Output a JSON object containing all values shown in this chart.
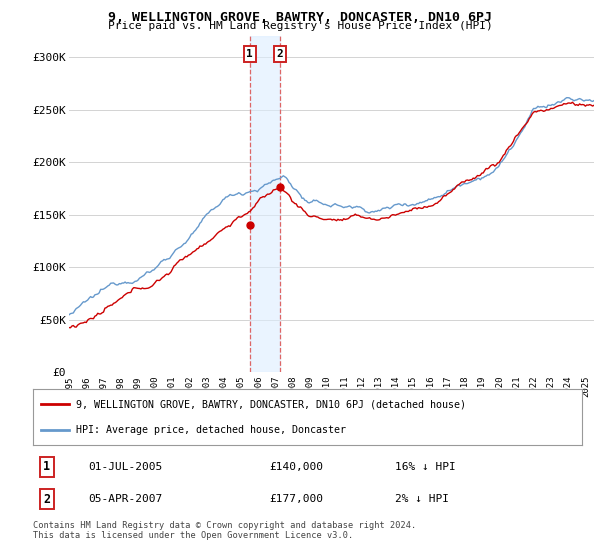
{
  "title": "9, WELLINGTON GROVE, BAWTRY, DONCASTER, DN10 6PJ",
  "subtitle": "Price paid vs. HM Land Registry's House Price Index (HPI)",
  "sale1_label": "1",
  "sale1_price": 140000,
  "sale2_label": "2",
  "sale2_price": 177000,
  "legend_red": "9, WELLINGTON GROVE, BAWTRY, DONCASTER, DN10 6PJ (detached house)",
  "legend_blue": "HPI: Average price, detached house, Doncaster",
  "footer": "Contains HM Land Registry data © Crown copyright and database right 2024.\nThis data is licensed under the Open Government Licence v3.0.",
  "xlim_start": 1995.0,
  "xlim_end": 2025.5,
  "ylim_bottom": 0,
  "ylim_top": 320000,
  "yticks": [
    0,
    50000,
    100000,
    150000,
    200000,
    250000,
    300000
  ],
  "ytick_labels": [
    "£0",
    "£50K",
    "£100K",
    "£150K",
    "£200K",
    "£250K",
    "£300K"
  ],
  "red_color": "#cc0000",
  "blue_color": "#6699cc",
  "shade_color": "#ddeeff",
  "vline_color": "#dd6666",
  "background_color": "#ffffff",
  "grid_color": "#cccccc",
  "sale1_x": 2005.5,
  "sale2_x": 2007.25
}
